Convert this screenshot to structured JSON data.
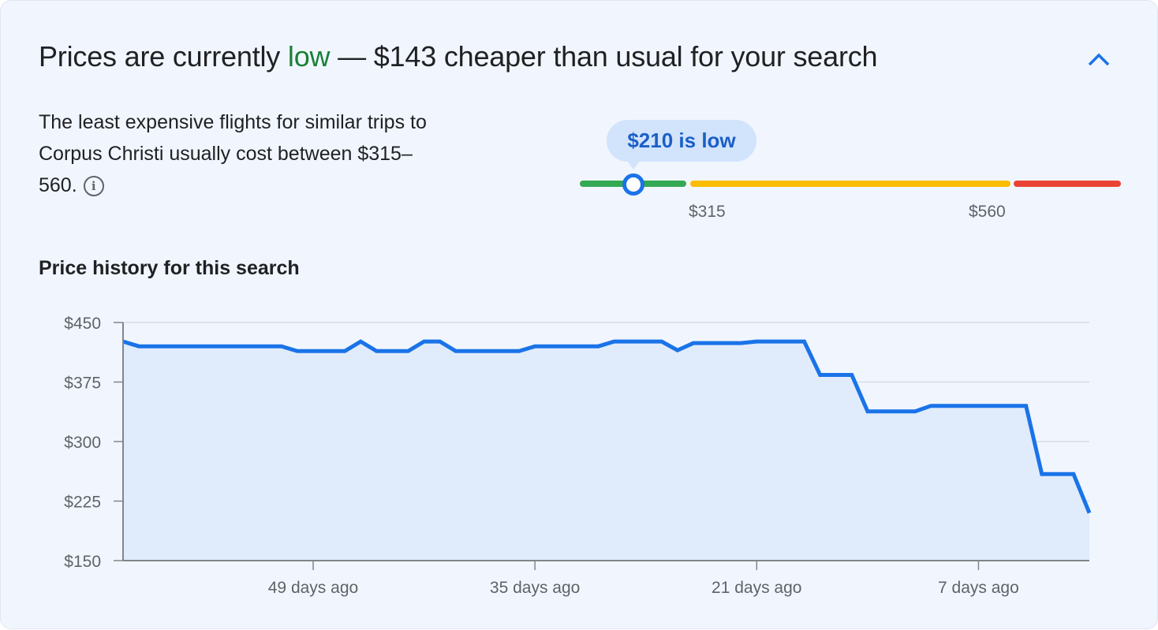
{
  "header": {
    "title_prefix": "Prices are currently ",
    "title_status": "low",
    "title_suffix": " — $143 cheaper than usual for your search",
    "collapse_icon": "chevron-up-icon"
  },
  "summary": {
    "text": "The least expensive flights for similar trips to Corpus Christi usually cost between $315–560.",
    "info_icon": "info-icon"
  },
  "price_meter": {
    "current_label": "$210 is low",
    "current_price": 210,
    "low_threshold_label": "$315",
    "high_threshold_label": "$560",
    "colors": {
      "low": "#34a853",
      "typical": "#fbbc04",
      "high": "#ea4335",
      "marker": "#1a73e8"
    }
  },
  "chart_title": "Price history for this search",
  "chart_data": {
    "type": "area",
    "xlabel": "",
    "ylabel": "",
    "xlim": [
      61,
      0
    ],
    "ylim": [
      150,
      450
    ],
    "yticks": [
      "$450",
      "$375",
      "$300",
      "$225",
      "$150"
    ],
    "ytick_values": [
      450,
      375,
      300,
      225,
      150
    ],
    "xticks": [
      "49 days ago",
      "35 days ago",
      "21 days ago",
      "7 days ago"
    ],
    "xtick_values": [
      49,
      35,
      21,
      7
    ],
    "grid": true,
    "line_color": "#1a73e8",
    "fill_color": "#e0ecfb",
    "points": [
      [
        61,
        426
      ],
      [
        60,
        420
      ],
      [
        51,
        420
      ],
      [
        50,
        414
      ],
      [
        47,
        414
      ],
      [
        46,
        426
      ],
      [
        45,
        414
      ],
      [
        43,
        414
      ],
      [
        42,
        426
      ],
      [
        41,
        426
      ],
      [
        40,
        414
      ],
      [
        36,
        414
      ],
      [
        35,
        420
      ],
      [
        31,
        420
      ],
      [
        30,
        426
      ],
      [
        27,
        426
      ],
      [
        26,
        415
      ],
      [
        25,
        424
      ],
      [
        22,
        424
      ],
      [
        21,
        426
      ],
      [
        18,
        426
      ],
      [
        17,
        384
      ],
      [
        15,
        384
      ],
      [
        14,
        338
      ],
      [
        11,
        338
      ],
      [
        10,
        345
      ],
      [
        4,
        345
      ],
      [
        3,
        259
      ],
      [
        1,
        259
      ],
      [
        0,
        210
      ]
    ]
  }
}
